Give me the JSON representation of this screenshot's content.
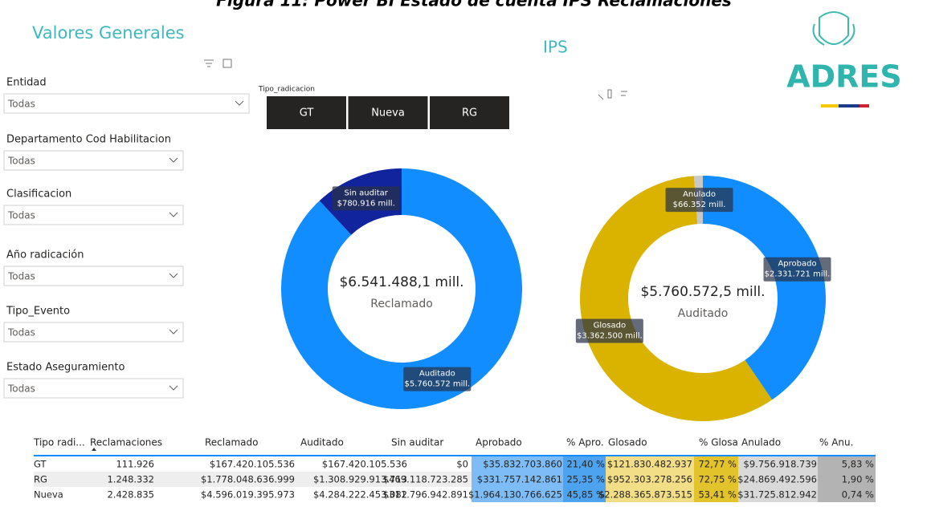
{
  "figure_title": "Figura 11: Power BI Estado de cuenta IPS Reclamaciones",
  "header": {
    "title": "Valores Generales",
    "ips_title": "IPS",
    "logo": "ADRES"
  },
  "filters": [
    {
      "label": "Entidad",
      "value": "Todas"
    },
    {
      "label": "Departamento Cod Habilitacion",
      "value": "Todas"
    },
    {
      "label": "Clasificacion",
      "value": "Todas"
    },
    {
      "label": "Año radicación",
      "value": "Todas"
    },
    {
      "label": "Tipo_Evento",
      "value": "Todas"
    },
    {
      "label": "Estado Aseguramiento",
      "value": "Todas"
    }
  ],
  "slicer": {
    "label": "Tipo_radicacion",
    "options": [
      "GT",
      "Nueva",
      "RG"
    ]
  },
  "chart_data": [
    {
      "type": "donut",
      "center_value": "$6.541.488,1 mill.",
      "center_label": "Reclamado",
      "categories": [
        "Auditado",
        "Sin auditar"
      ],
      "values": [
        5760572,
        780916
      ],
      "value_labels": [
        "$5.760.572 mill.",
        "$780.916 mill."
      ],
      "colors": [
        "#118dff",
        "#12239e"
      ]
    },
    {
      "type": "donut",
      "center_value": "$5.760.572,5 mill.",
      "center_label": "Auditado",
      "categories": [
        "Aprobado",
        "Glosado",
        "Anulado"
      ],
      "values": [
        2331721,
        3362500,
        66352
      ],
      "value_labels": [
        "$2.331.721 mill.",
        "$3.362.500 mill.",
        "$66.352 mill."
      ],
      "colors": [
        "#118dff",
        "#d9b300",
        "#c8c8c8"
      ]
    }
  ],
  "table": {
    "columns": [
      "Tipo radi...",
      "Reclamaciones",
      "Reclamado",
      "Auditado",
      "Sin auditar",
      "Aprobado",
      "% Apro.",
      "Glosado",
      "% Glosa",
      "Anulado",
      "% Anu."
    ],
    "rows": [
      [
        "GT",
        "111.926",
        "$167.420.105.536",
        "$167.420.105.536",
        "$0",
        "$35.832.703.860",
        "21,40 %",
        "$121.830.482.937",
        "72,77 %",
        "$9.756.918.739",
        "5,83 %"
      ],
      [
        "RG",
        "1.248.332",
        "$1.778.048.636.999",
        "$1.308.929.913.713",
        "$469.118.723.285",
        "$331.757.142.861",
        "25,35 %",
        "$952.303.278.256",
        "72,75 %",
        "$24.869.492.596",
        "1,90 %"
      ],
      [
        "Nueva",
        "2.428.835",
        "$4.596.019.395.973",
        "$4.284.222.453.082",
        "$311.796.942.891",
        "$1.964.130.766.625",
        "45,85 %",
        "$2.288.365.873.515",
        "53,41 %",
        "$31.725.812.942",
        "0,74 %"
      ]
    ]
  }
}
